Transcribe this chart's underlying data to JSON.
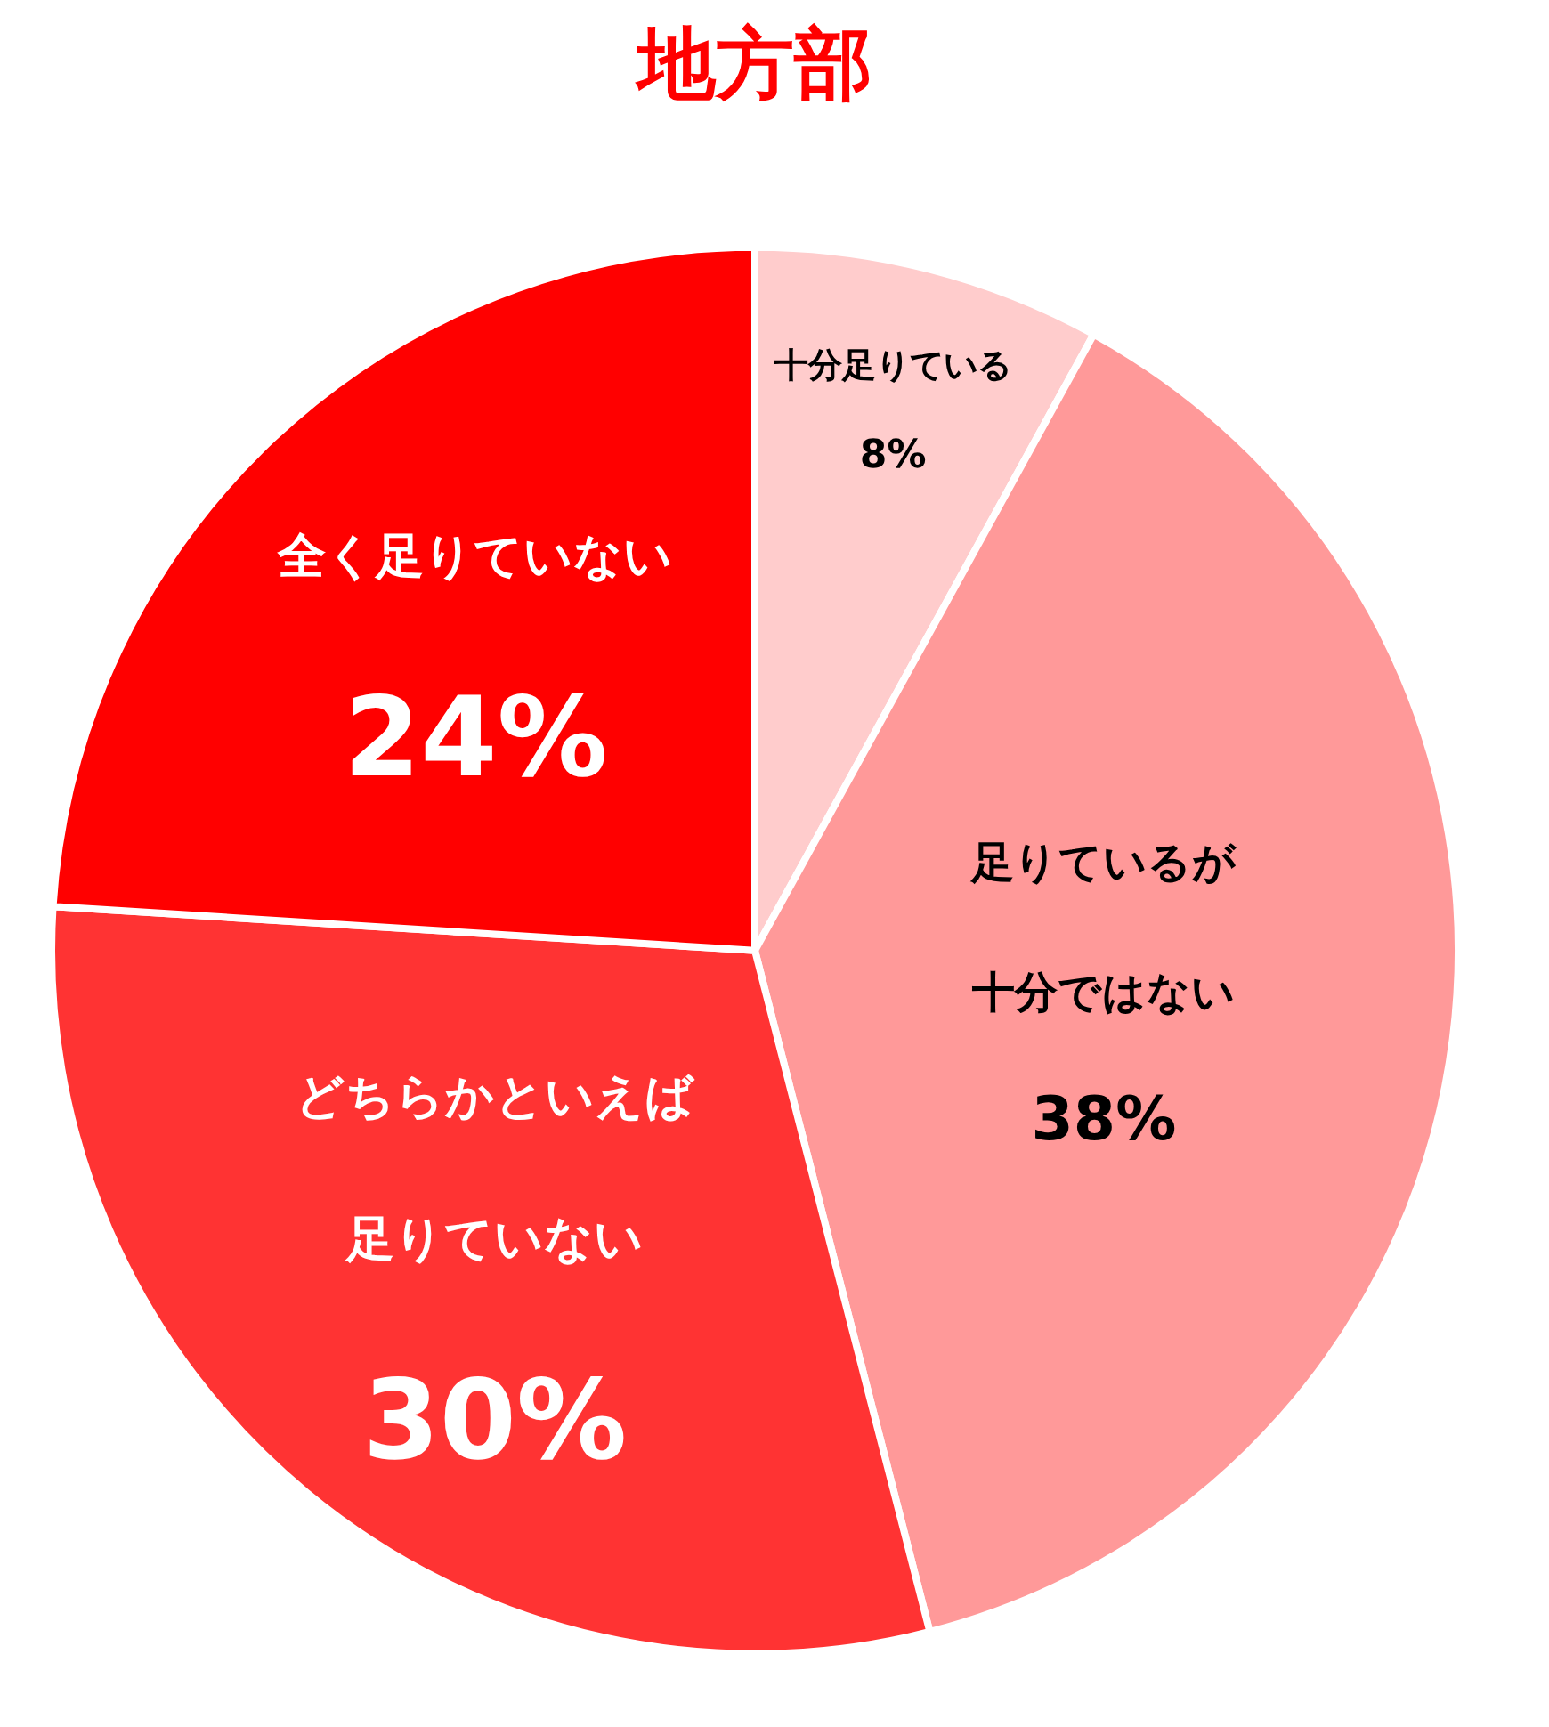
{
  "chart_data": {
    "type": "pie",
    "title": "地方部",
    "categories": [
      "十分足りている",
      "足りているが十分ではない",
      "どちらかといえば足りていない",
      "全く足りていない"
    ],
    "values": [
      8,
      38,
      30,
      24
    ],
    "value_labels": [
      "8%",
      "38%",
      "30%",
      "24%"
    ],
    "colors": [
      "#ffcccc",
      "#ff9999",
      "#ff3333",
      "#ff0000"
    ],
    "legend": false
  }
}
